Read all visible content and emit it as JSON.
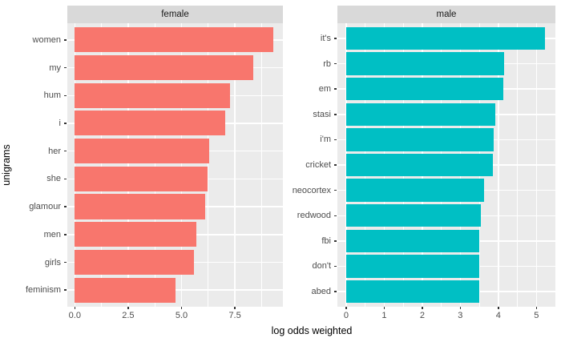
{
  "figure": {
    "background": "#FFFFFF",
    "panel_bg": "#EBEBEB",
    "strip_bg": "#D9D9D9",
    "grid_color": "#FFFFFF",
    "tick_mark_color": "#333333",
    "tick_label_color": "#4D4D4D",
    "axis_title_color": "#000000"
  },
  "chart_data": {
    "type": "bar",
    "orientation": "horizontal",
    "title": "",
    "xlabel": "log odds weighted",
    "ylabel": "unigrams",
    "grid": true,
    "legend": "none",
    "facets": [
      {
        "label": "female",
        "color": "#F8766D",
        "categories": [
          "women",
          "my",
          "hum",
          "i",
          "her",
          "she",
          "glamour",
          "men",
          "girls",
          "feminism"
        ],
        "values": [
          9.3,
          8.35,
          7.27,
          7.04,
          6.29,
          6.21,
          6.11,
          5.69,
          5.57,
          4.74
        ],
        "x_ticks": [
          0.0,
          2.5,
          5.0,
          7.5
        ],
        "x_tick_labels": [
          "0.0",
          "2.5",
          "5.0",
          "7.5"
        ],
        "x_minor_ticks": [
          1.25,
          3.75,
          6.25,
          8.75
        ],
        "xlim": [
          -0.35,
          9.75
        ]
      },
      {
        "label": "male",
        "color": "#00BFC4",
        "categories": [
          "it's",
          "rb",
          "em",
          "stasi",
          "i'm",
          "cricket",
          "neocortex",
          "redwood",
          "fbi",
          "don't",
          "abed"
        ],
        "values": [
          5.22,
          4.15,
          4.14,
          3.92,
          3.87,
          3.86,
          3.62,
          3.55,
          3.49,
          3.49,
          3.49
        ],
        "x_ticks": [
          0,
          1,
          2,
          3,
          4,
          5
        ],
        "x_tick_labels": [
          "0",
          "1",
          "2",
          "3",
          "4",
          "5"
        ],
        "x_minor_ticks": [
          0.5,
          1.5,
          2.5,
          3.5,
          4.5,
          5.5
        ],
        "xlim": [
          -0.23,
          5.5
        ]
      }
    ]
  }
}
